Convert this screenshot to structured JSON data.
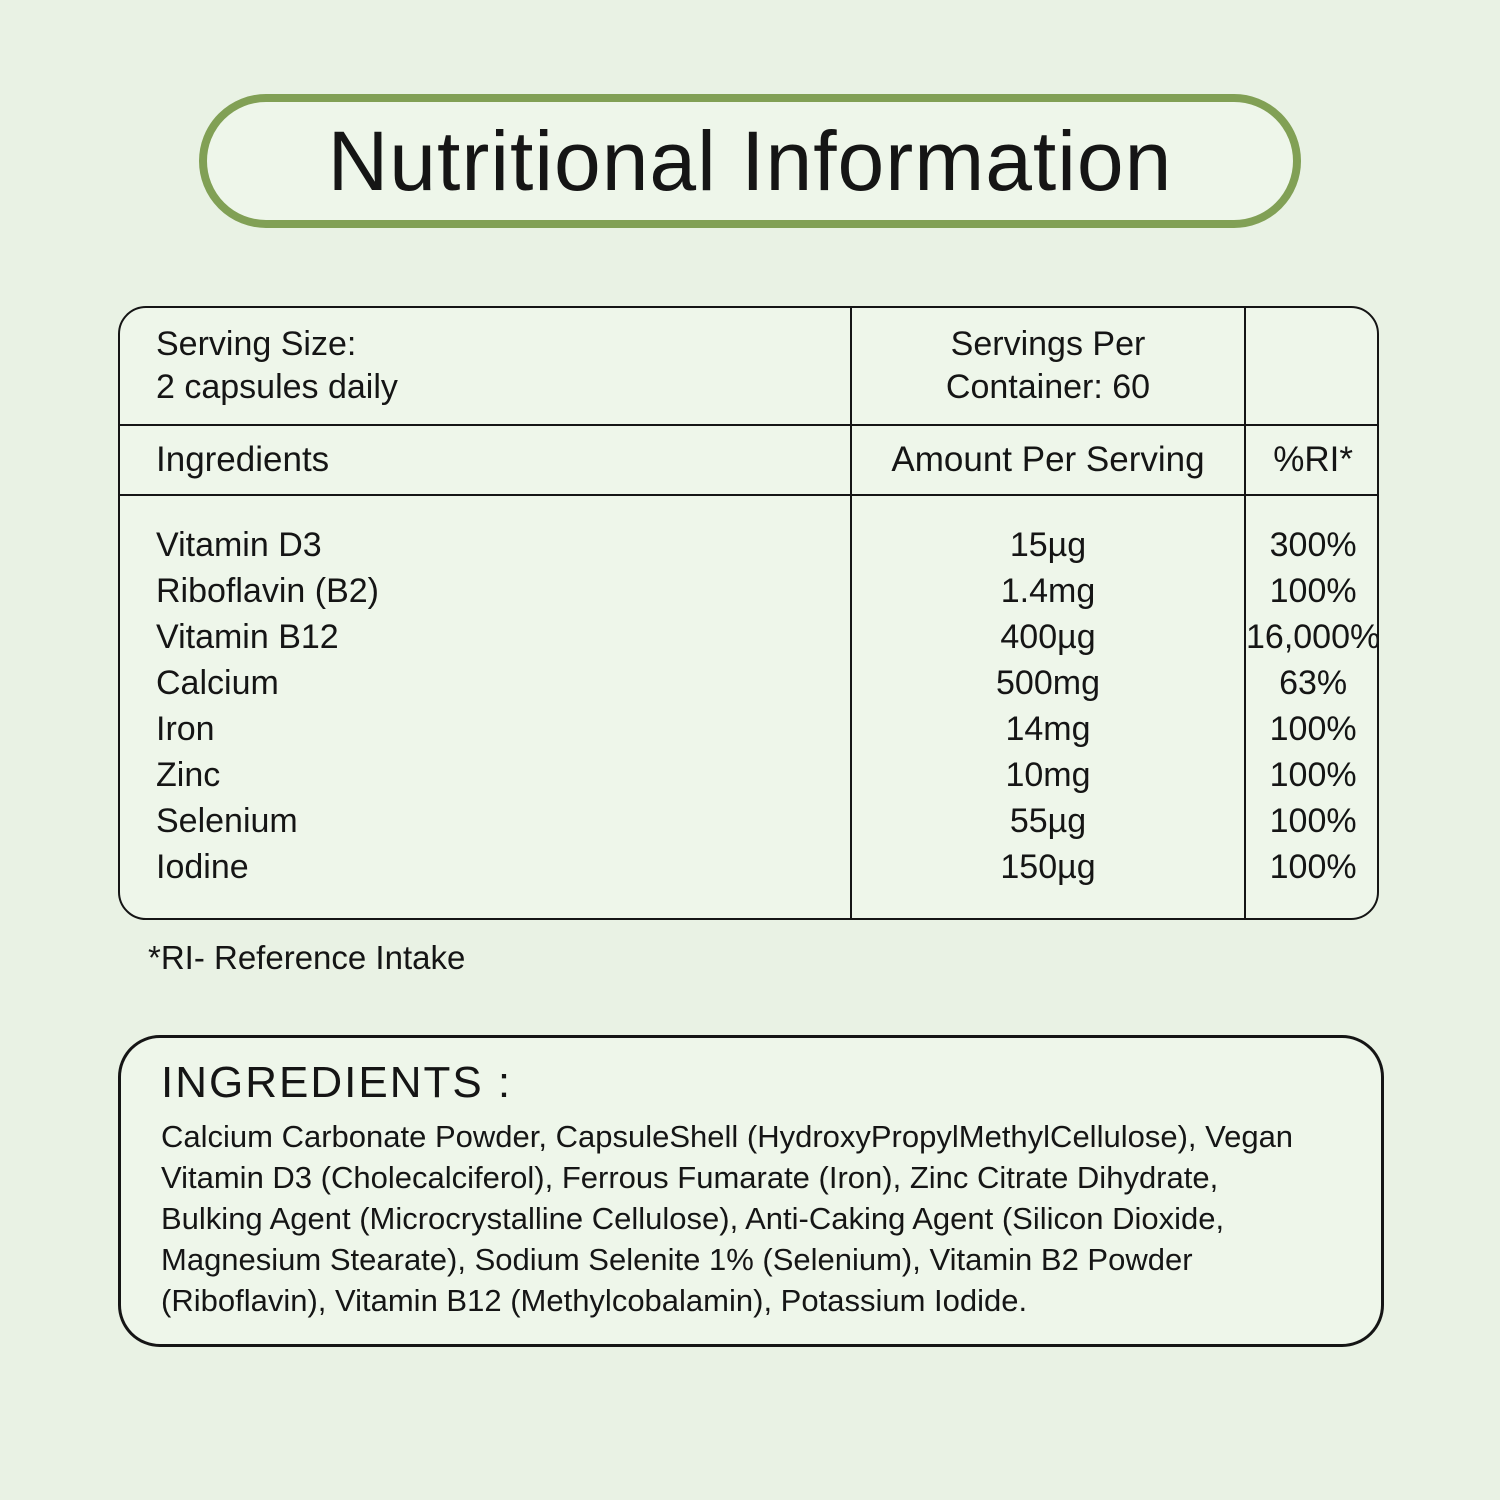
{
  "page": {
    "background": "#e9f2e4",
    "card_background": "#eef6ea",
    "accent_green": "#81a055",
    "text_color": "#151515"
  },
  "title": "Nutritional Information",
  "table": {
    "serving_size": {
      "label": "Serving Size:",
      "value": "2 capsules daily"
    },
    "servings_per_container": {
      "line1": "Servings Per",
      "line2": "Container: 60"
    },
    "headers": {
      "ingredients": "Ingredients",
      "amount": "Amount Per Serving",
      "ri": "%RI*"
    },
    "rows": [
      {
        "ingredient": "Vitamin D3",
        "amount": "15µg",
        "ri": "300%"
      },
      {
        "ingredient": "Riboflavin (B2)",
        "amount": "1.4mg",
        "ri": "100%"
      },
      {
        "ingredient": "Vitamin B12",
        "amount": "400µg",
        "ri": "16,000%"
      },
      {
        "ingredient": "Calcium",
        "amount": "500mg",
        "ri": "63%"
      },
      {
        "ingredient": "Iron",
        "amount": "14mg",
        "ri": "100%"
      },
      {
        "ingredient": "Zinc",
        "amount": "10mg",
        "ri": "100%"
      },
      {
        "ingredient": "Selenium",
        "amount": "55µg",
        "ri": "100%"
      },
      {
        "ingredient": "Iodine",
        "amount": "150µg",
        "ri": "100%"
      }
    ]
  },
  "footnote": "*RI- Reference Intake",
  "ingredients_section": {
    "heading": "INGREDIENTS :",
    "lines": [
      "Calcium Carbonate Powder, CapsuleShell (HydroxyPropylMethylCellulose), Vegan",
      "Vitamin D3 (Cholecalciferol), Ferrous Fumarate (Iron), Zinc Citrate Dihydrate,",
      "Bulking Agent (Microcrystalline Cellulose), Anti-Caking Agent (Silicon Dioxide,",
      "Magnesium Stearate), Sodium Selenite 1% (Selenium), Vitamin B2 Powder",
      "(Riboflavin), Vitamin B12 (Methylcobalamin), Potassium Iodide."
    ]
  }
}
